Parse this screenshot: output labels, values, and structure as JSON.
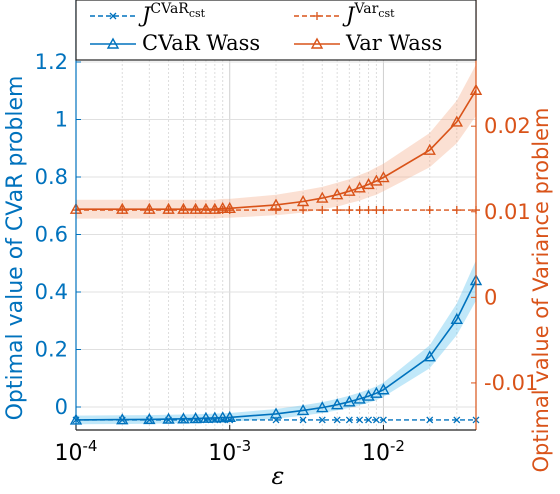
{
  "chart_data": {
    "type": "line",
    "x_scale": "log",
    "xlabel": "ε",
    "xlim": [
      0.0001,
      0.04
    ],
    "x_tick_labels": [
      "10^-4",
      "10^-3",
      "10^-2"
    ],
    "y_left": {
      "label": "Optimal value of CVaR problem",
      "lim": [
        -0.08,
        1.2
      ],
      "ticks": [
        -0.0,
        0.2,
        0.4,
        0.6,
        0.8,
        1.0,
        1.2
      ],
      "tick_labels": [
        "0",
        "0.2",
        "0.4",
        "0.6",
        "0.8",
        "1",
        "1.2"
      ],
      "color": "#0072BD"
    },
    "y_right": {
      "label": "Optimal value of Variance problem",
      "lim": [
        -0.0155,
        0.0275
      ],
      "ticks": [
        -0.01,
        0.0,
        0.01,
        0.02
      ],
      "tick_labels": [
        "-0.01",
        "0",
        "0.01",
        "0.02"
      ],
      "color": "#D95319"
    },
    "grid": true,
    "legend": "top",
    "x": [
      0.0001,
      0.0002,
      0.0003,
      0.0004,
      0.0005,
      0.0006,
      0.0007,
      0.0008,
      0.0009,
      0.001,
      0.002,
      0.003,
      0.004,
      0.005,
      0.006,
      0.007,
      0.008,
      0.009,
      0.01,
      0.02,
      0.03,
      0.04
    ],
    "series": [
      {
        "name": "J^CVaR_cst",
        "axis": "left",
        "style": "dashed",
        "marker": "x",
        "color": "#0072BD",
        "values": [
          -0.045,
          -0.045,
          -0.045,
          -0.045,
          -0.045,
          -0.045,
          -0.045,
          -0.045,
          -0.045,
          -0.045,
          -0.045,
          -0.045,
          -0.045,
          -0.045,
          -0.045,
          -0.045,
          -0.045,
          -0.045,
          -0.045,
          -0.045,
          -0.045,
          -0.045
        ]
      },
      {
        "name": "J^Var_cst",
        "axis": "right",
        "style": "dashed",
        "marker": "+",
        "color": "#D95319",
        "values": [
          0.0102,
          0.0102,
          0.0102,
          0.0102,
          0.0102,
          0.0102,
          0.0102,
          0.0102,
          0.0102,
          0.0102,
          0.0102,
          0.0102,
          0.0102,
          0.0102,
          0.0102,
          0.0102,
          0.0102,
          0.0102,
          0.0102,
          0.0102,
          0.0102,
          0.0102
        ]
      },
      {
        "name": "CVaR Wass",
        "axis": "left",
        "style": "solid",
        "marker": "triangle",
        "color": "#0072BD",
        "band_color": "#4DBEEE",
        "values": [
          -0.045,
          -0.044,
          -0.043,
          -0.042,
          -0.041,
          -0.04,
          -0.039,
          -0.038,
          -0.037,
          -0.036,
          -0.024,
          -0.012,
          -0.002,
          0.008,
          0.018,
          0.028,
          0.038,
          0.048,
          0.06,
          0.175,
          0.305,
          0.44
        ],
        "band": [
          0.015,
          0.015,
          0.015,
          0.015,
          0.015,
          0.015,
          0.015,
          0.015,
          0.015,
          0.015,
          0.017,
          0.018,
          0.019,
          0.02,
          0.021,
          0.022,
          0.023,
          0.024,
          0.025,
          0.04,
          0.055,
          0.07
        ]
      },
      {
        "name": "Var Wass",
        "axis": "right",
        "style": "solid",
        "marker": "triangle",
        "color": "#D95319",
        "band_color": "#F4A582",
        "values": [
          0.0103,
          0.0103,
          0.0103,
          0.0103,
          0.0103,
          0.0103,
          0.0103,
          0.0103,
          0.0104,
          0.0104,
          0.0108,
          0.0112,
          0.0116,
          0.012,
          0.0124,
          0.0128,
          0.0132,
          0.0136,
          0.014,
          0.0172,
          0.0205,
          0.0242
        ],
        "band": [
          0.0011,
          0.0011,
          0.0011,
          0.0011,
          0.0011,
          0.0011,
          0.0011,
          0.0011,
          0.0011,
          0.0011,
          0.0012,
          0.0013,
          0.0013,
          0.0014,
          0.0014,
          0.0015,
          0.0015,
          0.0016,
          0.0016,
          0.002,
          0.0025,
          0.003
        ]
      }
    ],
    "legend_entries": [
      {
        "main": "J",
        "sup": "CVaR",
        "subsup": "cst",
        "series": 0
      },
      {
        "main": "J",
        "sup": "Var",
        "subsup": "cst",
        "series": 1
      },
      {
        "main": "CVaR Wass",
        "series": 2
      },
      {
        "main": "Var Wass",
        "series": 3
      }
    ]
  }
}
